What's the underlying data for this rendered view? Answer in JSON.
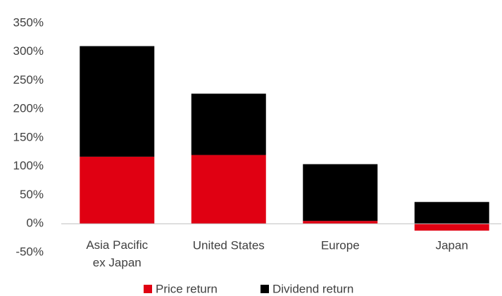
{
  "chart_data": {
    "type": "bar",
    "stacked": true,
    "categories": [
      "Asia Pacific ex Japan",
      "United States",
      "Europe",
      "Japan"
    ],
    "series": [
      {
        "name": "Price return",
        "color": "#e00012",
        "values": [
          117,
          120,
          5,
          -12
        ]
      },
      {
        "name": "Dividend return",
        "color": "#000000",
        "values": [
          193,
          107,
          99,
          38
        ]
      }
    ],
    "ylim": [
      -50,
      350
    ],
    "yticks": [
      {
        "value": -50,
        "label": "-50%"
      },
      {
        "value": 0,
        "label": "0%"
      },
      {
        "value": 50,
        "label": "50%"
      },
      {
        "value": 100,
        "label": "100%"
      },
      {
        "value": 150,
        "label": "150%"
      },
      {
        "value": 200,
        "label": "200%"
      },
      {
        "value": 250,
        "label": "250%"
      },
      {
        "value": 300,
        "label": "300%"
      },
      {
        "value": 350,
        "label": "350%"
      }
    ],
    "grid": false,
    "legend": "bottom"
  }
}
